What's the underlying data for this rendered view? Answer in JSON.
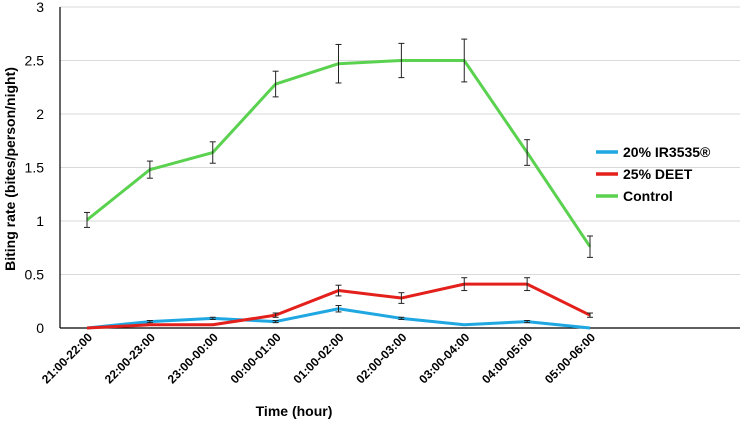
{
  "chart_data": {
    "type": "line",
    "categories": [
      "21:00-22:00",
      "22:00-23:00",
      "23:00-00:00",
      "00:00-01:00",
      "01:00-02:00",
      "02:00-03:00",
      "03:00-04:00",
      "04:00-05:00",
      "05:00-06:00"
    ],
    "xlabel": "Time (hour)",
    "ylabel": "Biting rate (bites/person/night)",
    "ylim": [
      0,
      3
    ],
    "yticks": [
      "0",
      "0.5",
      "1",
      "1.5",
      "2",
      "2.5",
      "3"
    ],
    "grid": true,
    "legend_position": "right",
    "series": [
      {
        "name": "20% IR3535®",
        "color": "#1ea7e1",
        "values": [
          0.0,
          0.06,
          0.09,
          0.06,
          0.18,
          0.09,
          0.03,
          0.06,
          0.0
        ],
        "errors": [
          0.0,
          0.01,
          0.01,
          0.01,
          0.03,
          0.01,
          0.0,
          0.01,
          0.0
        ]
      },
      {
        "name": "25% DEET",
        "color": "#e3201b",
        "values": [
          0.0,
          0.03,
          0.03,
          0.12,
          0.35,
          0.28,
          0.41,
          0.41,
          0.12
        ],
        "errors": [
          0.0,
          0.0,
          0.0,
          0.02,
          0.05,
          0.05,
          0.06,
          0.06,
          0.02
        ]
      },
      {
        "name": "Control",
        "color": "#5ad24f",
        "values": [
          1.01,
          1.48,
          1.64,
          2.28,
          2.47,
          2.5,
          2.5,
          1.64,
          0.76
        ],
        "errors": [
          0.07,
          0.08,
          0.1,
          0.12,
          0.18,
          0.16,
          0.2,
          0.12,
          0.1
        ]
      }
    ]
  }
}
